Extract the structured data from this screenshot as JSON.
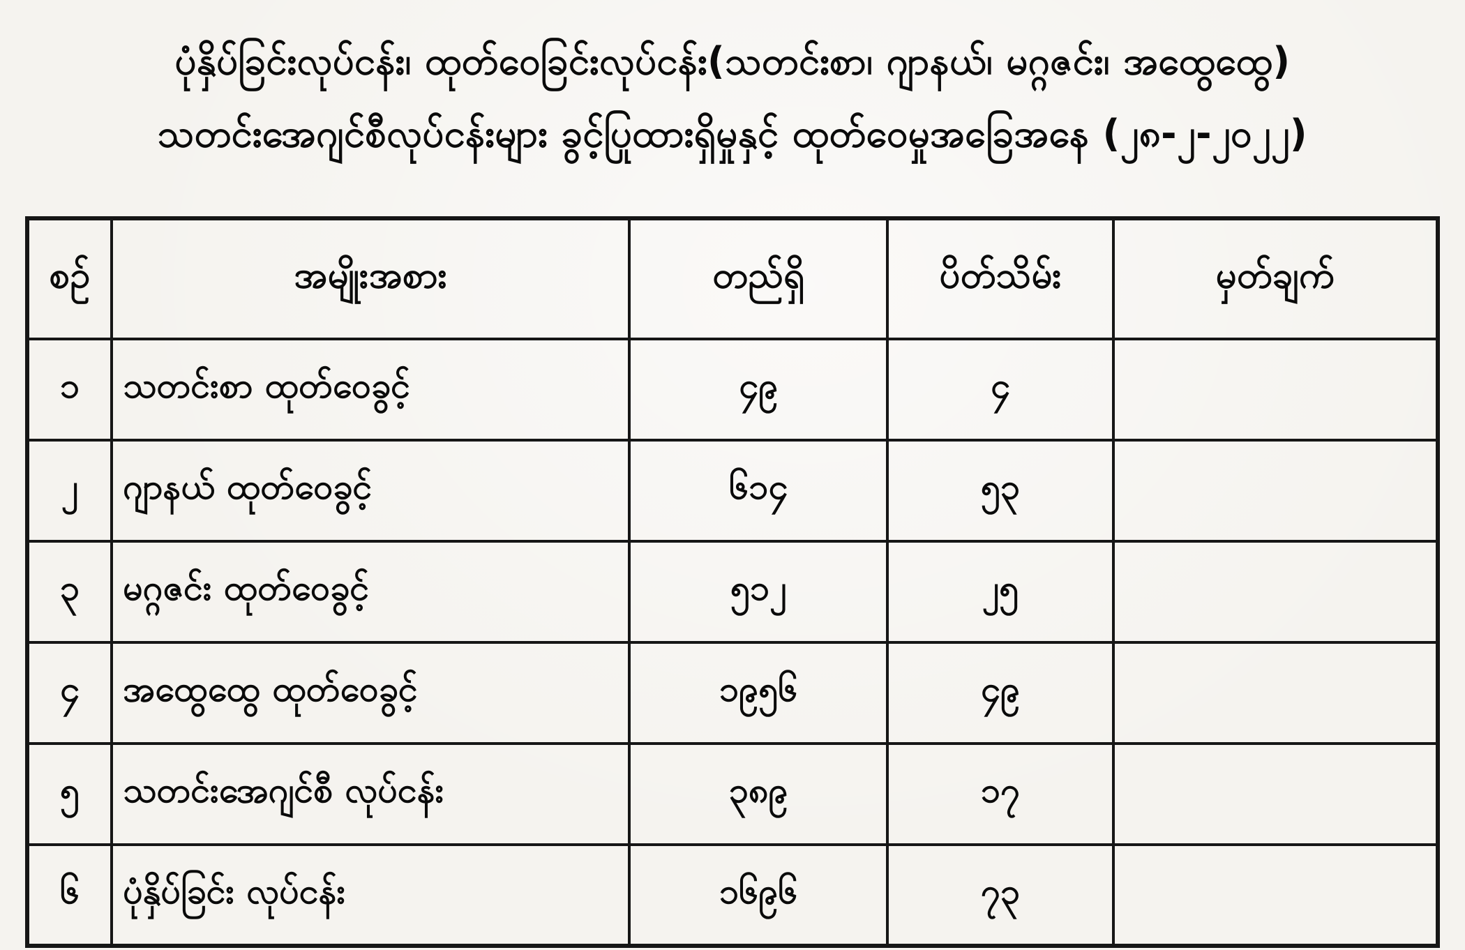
{
  "page": {
    "title_line1": "ပုံနှိပ်ခြင်းလုပ်ငန်း၊ ထုတ်ဝေခြင်းလုပ်ငန်း(သတင်းစာ၊ ဂျာနယ်၊ မဂ္ဂဇင်း၊ အထွေထွေ)",
    "title_line2": "သတင်းအေဂျင်စီလုပ်ငန်းများ ခွင့်ပြုထားရှိမှုနှင့် ထုတ်ဝေမှုအခြေအနေ (၂၈-၂-၂၀၂၂)",
    "date_shown": "၂၈-၂-၂၀၂၂"
  },
  "colors": {
    "paper": "#f5f3ef",
    "ink": "#0a0a0a",
    "table_border": "#161616"
  },
  "table": {
    "headers": {
      "no": "စဉ်",
      "type": "အမျိုးအစား",
      "existing": "တည်ရှိ",
      "closed": "ပိတ်သိမ်း",
      "remark": "မှတ်ချက်"
    },
    "rows": [
      {
        "no": "၁",
        "type": "သတင်းစာ ထုတ်ဝေခွင့်",
        "existing": "၄၉",
        "closed": "၄",
        "remark": ""
      },
      {
        "no": "၂",
        "type": "ဂျာနယ် ထုတ်ဝေခွင့်",
        "existing": "၆၁၄",
        "closed": "၅၃",
        "remark": ""
      },
      {
        "no": "၃",
        "type": "မဂ္ဂဇင်း ထုတ်ဝေခွင့်",
        "existing": "၅၁၂",
        "closed": "၂၅",
        "remark": ""
      },
      {
        "no": "၄",
        "type": "အထွေထွေ ထုတ်ဝေခွင့်",
        "existing": "၁၉၅၆",
        "closed": "၄၉",
        "remark": ""
      },
      {
        "no": "၅",
        "type": "သတင်းအေဂျင်စီ လုပ်ငန်း",
        "existing": "၃၈၉",
        "closed": "၁၇",
        "remark": ""
      },
      {
        "no": "၆",
        "type": "ပုံနှိပ်ခြင်း လုပ်ငန်း",
        "existing": "၁၆၉၆",
        "closed": "၇၃",
        "remark": ""
      }
    ]
  }
}
